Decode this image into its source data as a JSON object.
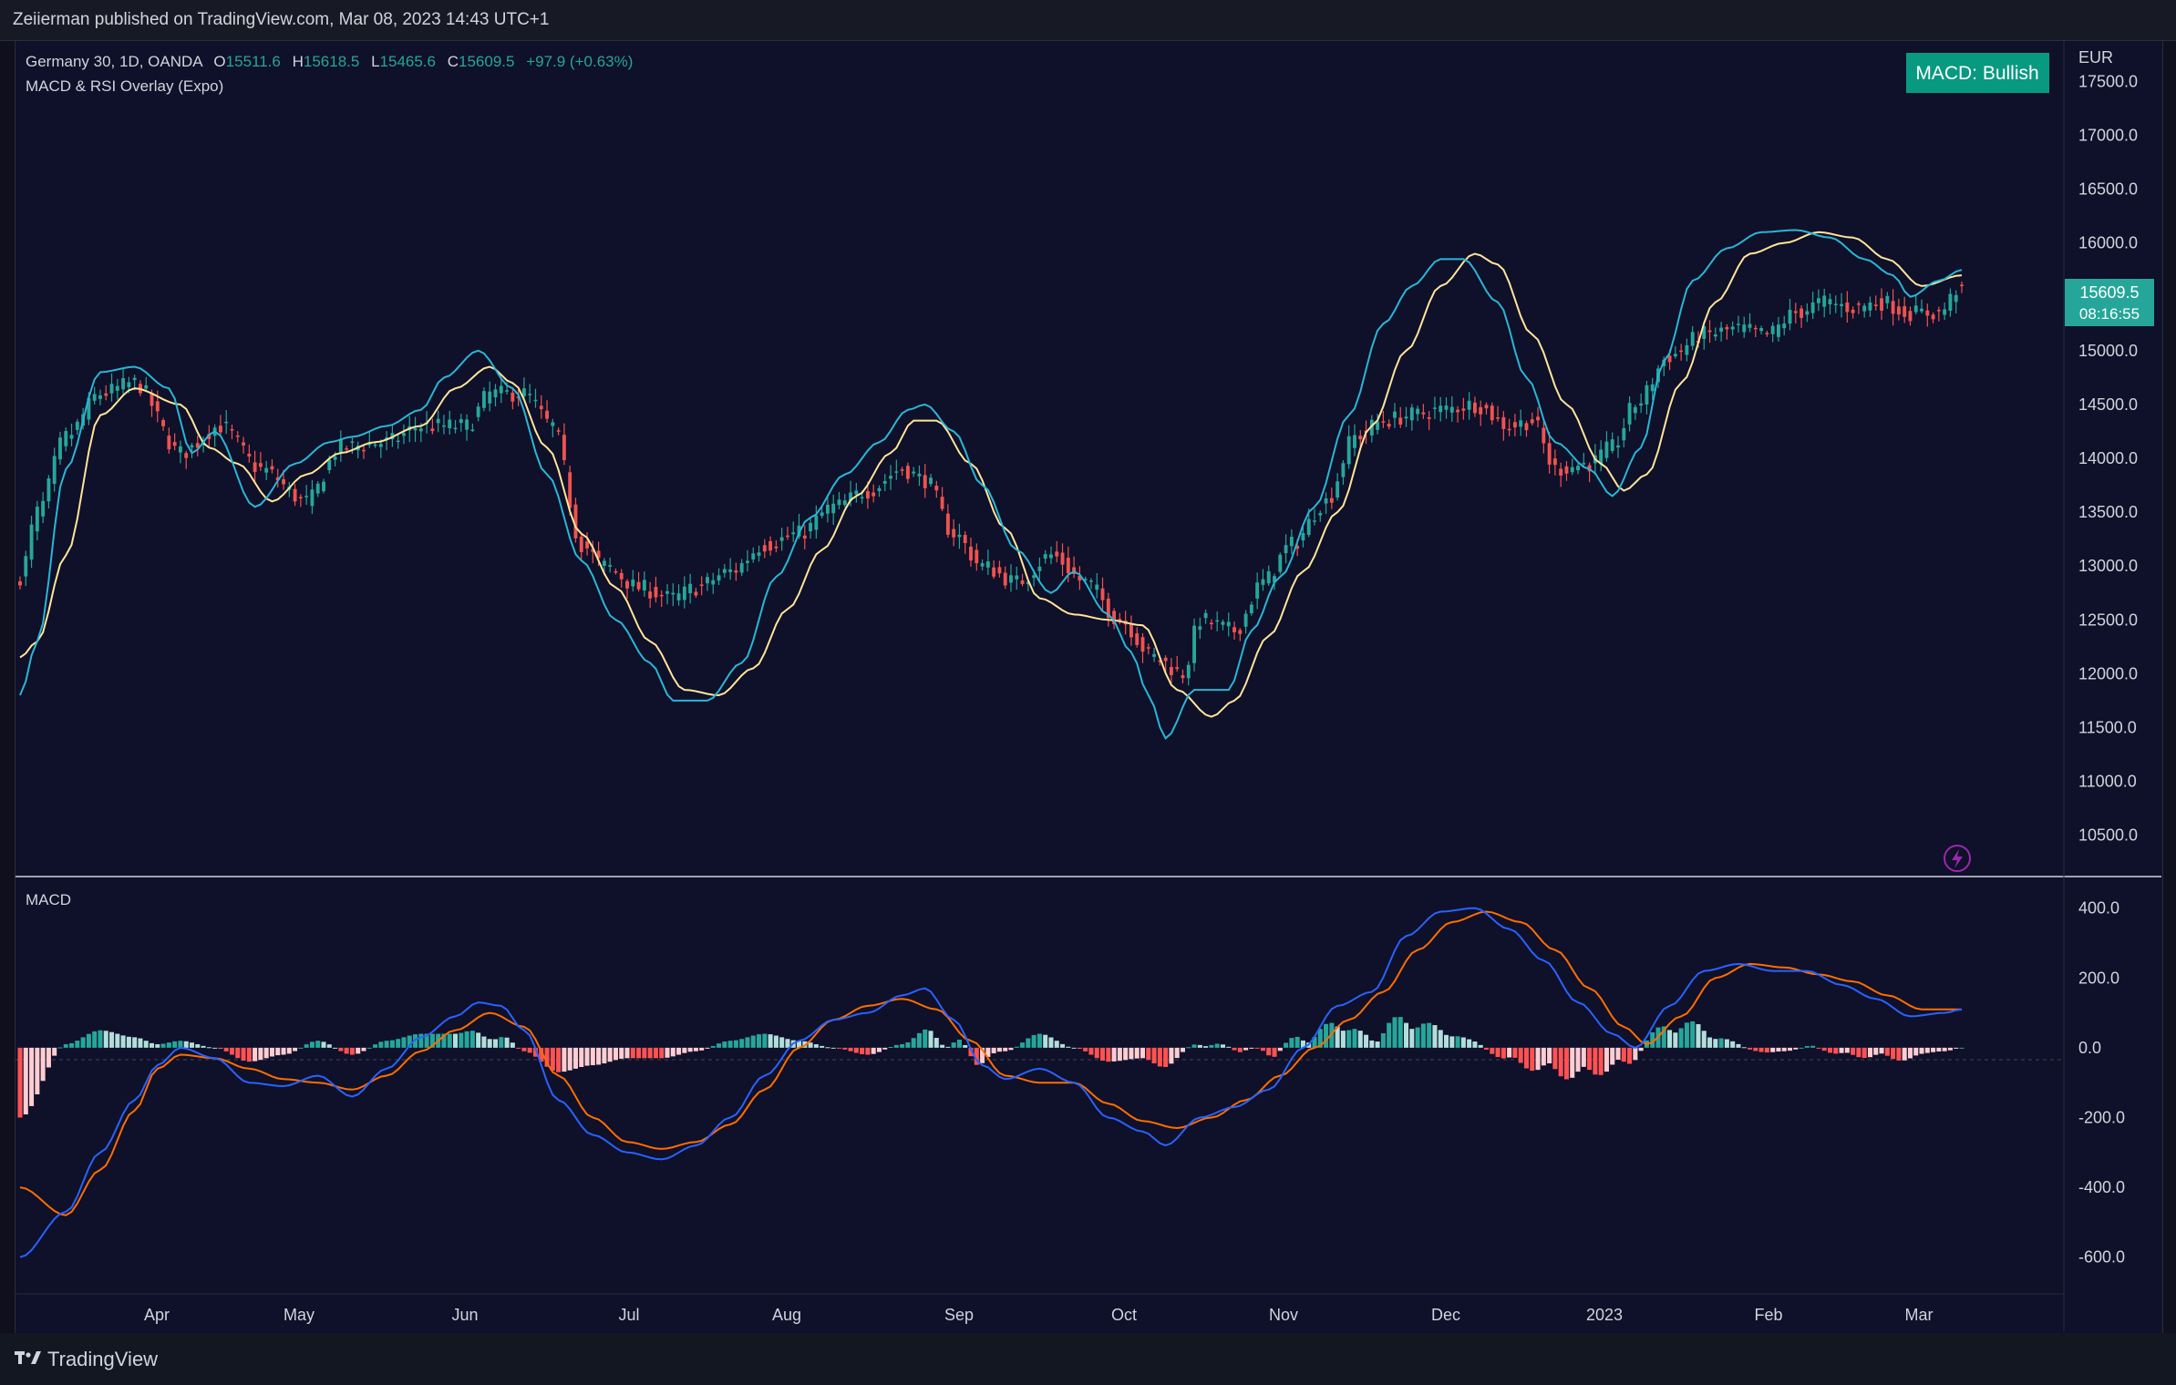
{
  "header": {
    "published_text": "Zeiierman published on TradingView.com, Mar 08, 2023 14:43 UTC+1"
  },
  "legend": {
    "symbol": "Germany 30, 1D, OANDA",
    "o_label": "O",
    "o_value": "15511.6",
    "h_label": "H",
    "h_value": "15618.5",
    "l_label": "L",
    "l_value": "15465.6",
    "c_label": "C",
    "c_value": "15609.5",
    "change": "+97.9 (+0.63%)",
    "indicator": "MACD & RSI Overlay (Expo)"
  },
  "status_badge": "MACD: Bullish",
  "price_tag": {
    "price": "15609.5",
    "countdown": "08:16:55"
  },
  "currency": "EUR",
  "macd_pane_label": "MACD",
  "footer": {
    "brand": "TradingView"
  },
  "colors": {
    "background": "#0f1029",
    "up": "#26a69a",
    "down": "#ef5350",
    "rsi_fast": "#29b6d6",
    "rsi_slow": "#ffe59a",
    "macd_line": "#2962ff",
    "signal_line": "#ff6d00",
    "hist_up_strong": "#26a69a",
    "hist_up_weak": "#b2dfdb",
    "hist_down_strong": "#ff5252",
    "hist_down_weak": "#ffcdd2",
    "badge": "#089981"
  },
  "chart_data": [
    {
      "type": "candlestick",
      "x_axis": {
        "ticks": [
          "Apr",
          "May",
          "Jun",
          "Jul",
          "Aug",
          "Sep",
          "Oct",
          "Nov",
          "Dec",
          "2023",
          "Feb",
          "Mar"
        ]
      },
      "y_axis": {
        "ticks": [
          17500,
          17000,
          16500,
          16000,
          15500,
          15000,
          14500,
          14000,
          13500,
          13000,
          12500,
          12000,
          11500,
          11000,
          10500
        ],
        "ylim": [
          10150,
          17850
        ]
      },
      "close_anchors": [
        [
          0,
          12900
        ],
        [
          3,
          13500
        ],
        [
          8,
          14200
        ],
        [
          14,
          14600
        ],
        [
          20,
          14700
        ],
        [
          28,
          14050
        ],
        [
          35,
          14300
        ],
        [
          42,
          13900
        ],
        [
          50,
          13600
        ],
        [
          56,
          14100
        ],
        [
          64,
          14150
        ],
        [
          70,
          14300
        ],
        [
          78,
          14300
        ],
        [
          82,
          14600
        ],
        [
          88,
          14600
        ],
        [
          93,
          14300
        ],
        [
          98,
          13200
        ],
        [
          102,
          13000
        ],
        [
          108,
          12800
        ],
        [
          114,
          12700
        ],
        [
          118,
          12800
        ],
        [
          124,
          12950
        ],
        [
          130,
          13200
        ],
        [
          136,
          13300
        ],
        [
          142,
          13550
        ],
        [
          148,
          13700
        ],
        [
          154,
          13900
        ],
        [
          158,
          13800
        ],
        [
          163,
          13300
        ],
        [
          168,
          13000
        ],
        [
          174,
          12850
        ],
        [
          180,
          13100
        ],
        [
          186,
          12850
        ],
        [
          192,
          12500
        ],
        [
          198,
          12150
        ],
        [
          203,
          12000
        ],
        [
          206,
          12500
        ],
        [
          212,
          12400
        ],
        [
          217,
          12850
        ],
        [
          222,
          13200
        ],
        [
          228,
          13600
        ],
        [
          233,
          14200
        ],
        [
          238,
          14350
        ],
        [
          243,
          14400
        ],
        [
          248,
          14450
        ],
        [
          254,
          14500
        ],
        [
          260,
          14300
        ],
        [
          264,
          14350
        ],
        [
          268,
          13900
        ],
        [
          274,
          13950
        ],
        [
          278,
          14100
        ],
        [
          282,
          14500
        ],
        [
          288,
          14950
        ],
        [
          294,
          15150
        ],
        [
          300,
          15200
        ],
        [
          305,
          15150
        ],
        [
          310,
          15350
        ],
        [
          315,
          15450
        ],
        [
          320,
          15400
        ],
        [
          325,
          15450
        ],
        [
          330,
          15350
        ],
        [
          335,
          15350
        ],
        [
          339,
          15609.5
        ]
      ],
      "rsi_lines": {
        "fast_anchors": [
          [
            0,
            11800
          ],
          [
            3,
            12300
          ],
          [
            8,
            13900
          ],
          [
            14,
            14800
          ],
          [
            20,
            14850
          ],
          [
            26,
            14650
          ],
          [
            30,
            14050
          ],
          [
            34,
            14250
          ],
          [
            41,
            13550
          ],
          [
            48,
            13950
          ],
          [
            54,
            14150
          ],
          [
            58,
            14200
          ],
          [
            64,
            14300
          ],
          [
            70,
            14450
          ],
          [
            74,
            14750
          ],
          [
            80,
            15000
          ],
          [
            86,
            14650
          ],
          [
            92,
            13850
          ],
          [
            98,
            13050
          ],
          [
            104,
            12500
          ],
          [
            110,
            12100
          ],
          [
            114,
            11750
          ],
          [
            120,
            11750
          ],
          [
            126,
            12100
          ],
          [
            132,
            12900
          ],
          [
            138,
            13450
          ],
          [
            144,
            13850
          ],
          [
            150,
            14150
          ],
          [
            155,
            14450
          ],
          [
            158,
            14500
          ],
          [
            163,
            14250
          ],
          [
            168,
            13750
          ],
          [
            174,
            13150
          ],
          [
            180,
            12750
          ],
          [
            184,
            12950
          ],
          [
            190,
            12550
          ],
          [
            194,
            12200
          ],
          [
            197,
            11800
          ],
          [
            200,
            11400
          ],
          [
            205,
            11850
          ],
          [
            211,
            11850
          ],
          [
            215,
            12400
          ],
          [
            220,
            12900
          ],
          [
            226,
            13550
          ],
          [
            232,
            14400
          ],
          [
            238,
            15250
          ],
          [
            243,
            15600
          ],
          [
            248,
            15850
          ],
          [
            252,
            15850
          ],
          [
            258,
            15450
          ],
          [
            263,
            14750
          ],
          [
            268,
            14150
          ],
          [
            274,
            13900
          ],
          [
            278,
            13650
          ],
          [
            283,
            14100
          ],
          [
            287,
            14900
          ],
          [
            292,
            15650
          ],
          [
            298,
            15950
          ],
          [
            304,
            16100
          ],
          [
            310,
            16120
          ],
          [
            316,
            16050
          ],
          [
            322,
            15850
          ],
          [
            327,
            15700
          ],
          [
            330,
            15500
          ],
          [
            335,
            15650
          ],
          [
            339,
            15750
          ]
        ],
        "slow_anchors": [
          [
            0,
            12150
          ],
          [
            3,
            12300
          ],
          [
            8,
            13100
          ],
          [
            14,
            14400
          ],
          [
            20,
            14650
          ],
          [
            28,
            14500
          ],
          [
            33,
            14100
          ],
          [
            38,
            13950
          ],
          [
            44,
            13600
          ],
          [
            50,
            13850
          ],
          [
            56,
            14050
          ],
          [
            62,
            14150
          ],
          [
            70,
            14300
          ],
          [
            76,
            14650
          ],
          [
            82,
            14850
          ],
          [
            86,
            14700
          ],
          [
            92,
            14100
          ],
          [
            98,
            13300
          ],
          [
            104,
            12800
          ],
          [
            110,
            12300
          ],
          [
            116,
            11850
          ],
          [
            122,
            11800
          ],
          [
            128,
            12050
          ],
          [
            134,
            12600
          ],
          [
            140,
            13150
          ],
          [
            146,
            13650
          ],
          [
            152,
            14050
          ],
          [
            156,
            14350
          ],
          [
            160,
            14350
          ],
          [
            166,
            13950
          ],
          [
            172,
            13350
          ],
          [
            178,
            12700
          ],
          [
            184,
            12550
          ],
          [
            190,
            12500
          ],
          [
            196,
            12450
          ],
          [
            202,
            11850
          ],
          [
            208,
            11600
          ],
          [
            212,
            11750
          ],
          [
            218,
            12350
          ],
          [
            224,
            12950
          ],
          [
            230,
            13500
          ],
          [
            236,
            14300
          ],
          [
            242,
            15000
          ],
          [
            248,
            15600
          ],
          [
            254,
            15900
          ],
          [
            258,
            15800
          ],
          [
            264,
            15150
          ],
          [
            270,
            14500
          ],
          [
            276,
            13950
          ],
          [
            280,
            13700
          ],
          [
            284,
            13850
          ],
          [
            290,
            14700
          ],
          [
            296,
            15450
          ],
          [
            302,
            15900
          ],
          [
            308,
            16000
          ],
          [
            314,
            16100
          ],
          [
            320,
            16050
          ],
          [
            326,
            15850
          ],
          [
            332,
            15600
          ],
          [
            339,
            15700
          ]
        ]
      },
      "last_price": 15609.5,
      "bars": 340
    },
    {
      "type": "macd",
      "y_axis": {
        "ticks": [
          400,
          200,
          0,
          -200,
          -400,
          -600
        ],
        "ylim": [
          -700,
          480
        ]
      },
      "macd_anchors": [
        [
          0,
          -600
        ],
        [
          8,
          -470
        ],
        [
          14,
          -300
        ],
        [
          20,
          -150
        ],
        [
          24,
          -50
        ],
        [
          28,
          0
        ],
        [
          34,
          -30
        ],
        [
          40,
          -100
        ],
        [
          46,
          -110
        ],
        [
          52,
          -80
        ],
        [
          58,
          -140
        ],
        [
          64,
          -60
        ],
        [
          70,
          30
        ],
        [
          76,
          90
        ],
        [
          80,
          130
        ],
        [
          84,
          120
        ],
        [
          88,
          50
        ],
        [
          94,
          -150
        ],
        [
          100,
          -250
        ],
        [
          106,
          -300
        ],
        [
          112,
          -320
        ],
        [
          118,
          -280
        ],
        [
          124,
          -200
        ],
        [
          130,
          -80
        ],
        [
          136,
          20
        ],
        [
          142,
          80
        ],
        [
          148,
          100
        ],
        [
          154,
          150
        ],
        [
          158,
          170
        ],
        [
          163,
          80
        ],
        [
          168,
          -50
        ],
        [
          172,
          -90
        ],
        [
          178,
          -60
        ],
        [
          184,
          -100
        ],
        [
          190,
          -200
        ],
        [
          196,
          -240
        ],
        [
          200,
          -280
        ],
        [
          206,
          -200
        ],
        [
          212,
          -170
        ],
        [
          218,
          -120
        ],
        [
          224,
          0
        ],
        [
          230,
          120
        ],
        [
          236,
          160
        ],
        [
          242,
          320
        ],
        [
          248,
          390
        ],
        [
          254,
          400
        ],
        [
          260,
          340
        ],
        [
          266,
          250
        ],
        [
          272,
          130
        ],
        [
          278,
          40
        ],
        [
          282,
          0
        ],
        [
          288,
          120
        ],
        [
          294,
          220
        ],
        [
          300,
          240
        ],
        [
          306,
          220
        ],
        [
          312,
          220
        ],
        [
          318,
          180
        ],
        [
          324,
          140
        ],
        [
          330,
          90
        ],
        [
          336,
          100
        ],
        [
          339,
          110
        ]
      ],
      "signal_anchors": [
        [
          0,
          -400
        ],
        [
          8,
          -480
        ],
        [
          14,
          -350
        ],
        [
          20,
          -180
        ],
        [
          24,
          -60
        ],
        [
          28,
          -20
        ],
        [
          34,
          -30
        ],
        [
          40,
          -60
        ],
        [
          46,
          -90
        ],
        [
          52,
          -100
        ],
        [
          58,
          -120
        ],
        [
          64,
          -80
        ],
        [
          70,
          -10
        ],
        [
          76,
          50
        ],
        [
          82,
          100
        ],
        [
          88,
          60
        ],
        [
          94,
          -80
        ],
        [
          100,
          -200
        ],
        [
          106,
          -270
        ],
        [
          112,
          -290
        ],
        [
          118,
          -270
        ],
        [
          124,
          -220
        ],
        [
          130,
          -120
        ],
        [
          136,
          0
        ],
        [
          142,
          80
        ],
        [
          148,
          120
        ],
        [
          154,
          140
        ],
        [
          160,
          110
        ],
        [
          166,
          20
        ],
        [
          172,
          -80
        ],
        [
          178,
          -100
        ],
        [
          184,
          -100
        ],
        [
          190,
          -160
        ],
        [
          196,
          -210
        ],
        [
          202,
          -230
        ],
        [
          208,
          -200
        ],
        [
          214,
          -150
        ],
        [
          220,
          -80
        ],
        [
          226,
          0
        ],
        [
          232,
          80
        ],
        [
          238,
          160
        ],
        [
          244,
          280
        ],
        [
          250,
          360
        ],
        [
          256,
          390
        ],
        [
          262,
          360
        ],
        [
          268,
          280
        ],
        [
          274,
          170
        ],
        [
          280,
          60
        ],
        [
          284,
          10
        ],
        [
          290,
          90
        ],
        [
          296,
          200
        ],
        [
          302,
          240
        ],
        [
          308,
          230
        ],
        [
          314,
          210
        ],
        [
          320,
          190
        ],
        [
          326,
          150
        ],
        [
          332,
          110
        ],
        [
          339,
          110
        ]
      ]
    }
  ]
}
